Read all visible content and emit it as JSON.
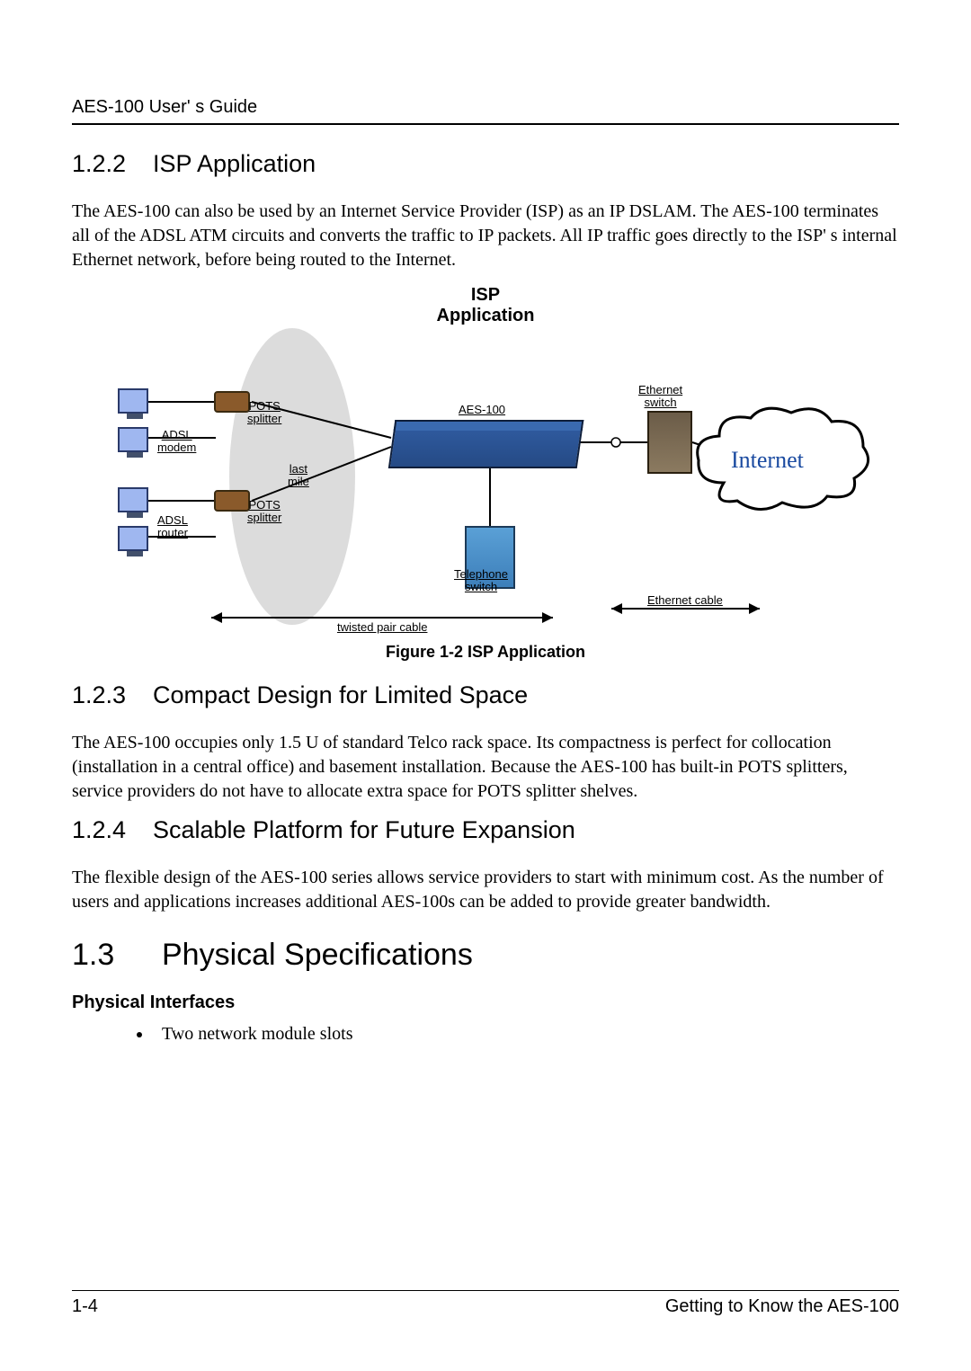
{
  "header": {
    "title": "AES-100 User' s Guide"
  },
  "sections": {
    "s122": {
      "num": "1.2.2",
      "title": "ISP Application",
      "para": "The AES-100 can also be used by an Internet Service Provider (ISP) as an IP DSLAM. The AES-100 terminates all of the ADSL ATM circuits and converts the traffic to IP packets. All IP traffic goes directly to the ISP' s internal Ethernet network, before being routed to the Internet."
    },
    "figure12": {
      "title_line1": "ISP",
      "title_line2": "Application",
      "caption": "Figure 1-2 ISP Application",
      "labels": {
        "adsl_modem": "ADSL\nmodem",
        "adsl_router": "ADSL\nrouter",
        "pots_splitter": "POTS\nsplitter",
        "last_mile": "last\nmile",
        "aes100": "AES-100",
        "eth_switch": "Ethernet\nswitch",
        "tel_switch": "Telephone\nswitch",
        "internet": "Internet",
        "twisted": "twisted pair cable",
        "ethcable": "Ethernet cable"
      },
      "colors": {
        "oval": "#d8d8d8",
        "aes": "#2f5a9e",
        "monitor": "#9fb7f0",
        "pots": "#8a5a2b",
        "switch": "#6b5c48",
        "telco": "#5aa0d6",
        "cloud_stroke": "#000000",
        "cloud_fill": "#ffffff",
        "internet_text": "#1a4aa0"
      }
    },
    "s123": {
      "num": "1.2.3",
      "title": "Compact Design for Limited Space",
      "para": "The AES-100 occupies only 1.5 U of standard Telco rack space.  Its compactness is perfect for collocation (installation in a central office) and basement installation. Because the AES-100 has built-in POTS splitters, service providers do not have to allocate extra space for POTS splitter shelves."
    },
    "s124": {
      "num": "1.2.4",
      "title": "Scalable Platform for Future Expansion",
      "para": "The flexible design of the AES-100 series allows service providers to start with minimum cost. As the number of users and applications increases additional AES-100s can be added to provide greater bandwidth."
    },
    "s13": {
      "num": "1.3",
      "title": "Physical Specifications"
    },
    "phys_if": {
      "heading": "Physical Interfaces",
      "bullet1": "Two network module slots"
    }
  },
  "footer": {
    "left": "1-4",
    "right": "Getting to Know the AES-100"
  }
}
